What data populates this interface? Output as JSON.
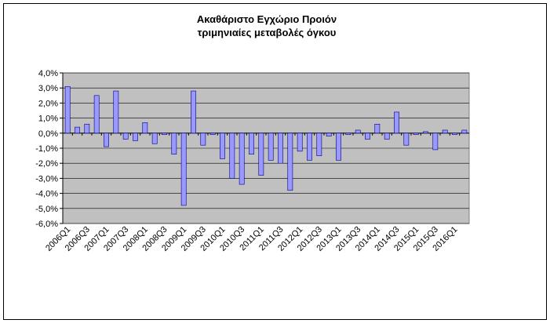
{
  "chart_data": {
    "type": "bar",
    "title": "Ακαθάριστο Εγχώριο Προιόν",
    "subtitle": "τριμηνιαίες μεταβολές όγκου",
    "categories": [
      "2006Q1",
      null,
      "2006Q3",
      null,
      "2007Q1",
      null,
      "2007Q3",
      null,
      "2008Q1",
      null,
      "2008Q3",
      null,
      "2009Q1",
      null,
      "2009Q3",
      null,
      "2010Q1",
      null,
      "2010Q3",
      null,
      "2011Q1",
      null,
      "2011Q3",
      null,
      "2012Q1",
      null,
      "2012Q3",
      null,
      "2013Q1",
      null,
      "2013Q3",
      null,
      "2014Q1",
      null,
      "2014Q3",
      null,
      "2015Q1",
      null,
      "2015Q3",
      null,
      "2016Q1",
      null
    ],
    "values": [
      3.1,
      0.4,
      0.6,
      2.5,
      -0.9,
      2.8,
      -0.4,
      -0.5,
      0.7,
      -0.7,
      -0.1,
      -1.4,
      -4.8,
      2.8,
      -0.8,
      -0.1,
      -1.7,
      -3.0,
      -3.4,
      -1.4,
      -2.8,
      -1.8,
      -2.0,
      -3.8,
      -1.2,
      -1.8,
      -1.5,
      -0.2,
      -1.8,
      -0.1,
      0.2,
      -0.4,
      0.6,
      -0.4,
      1.4,
      -0.8,
      -0.1,
      0.1,
      -1.1,
      0.2,
      -0.1,
      0.2
    ],
    "color": "#9999ff",
    "ylim": [
      -6,
      4
    ],
    "yticks": [
      {
        "value": 4,
        "label": "4,0%"
      },
      {
        "value": 3,
        "label": "3,0%"
      },
      {
        "value": 2,
        "label": "2,0%"
      },
      {
        "value": 1,
        "label": "1,0%"
      },
      {
        "value": 0,
        "label": "0,0%"
      },
      {
        "value": -1,
        "label": "-1,0%"
      },
      {
        "value": -2,
        "label": "-2,0%"
      },
      {
        "value": -3,
        "label": "-3,0%"
      },
      {
        "value": -4,
        "label": "-4,0%"
      },
      {
        "value": -5,
        "label": "-5,0%"
      },
      {
        "value": -6,
        "label": "-6,0%"
      }
    ],
    "grid": true
  }
}
